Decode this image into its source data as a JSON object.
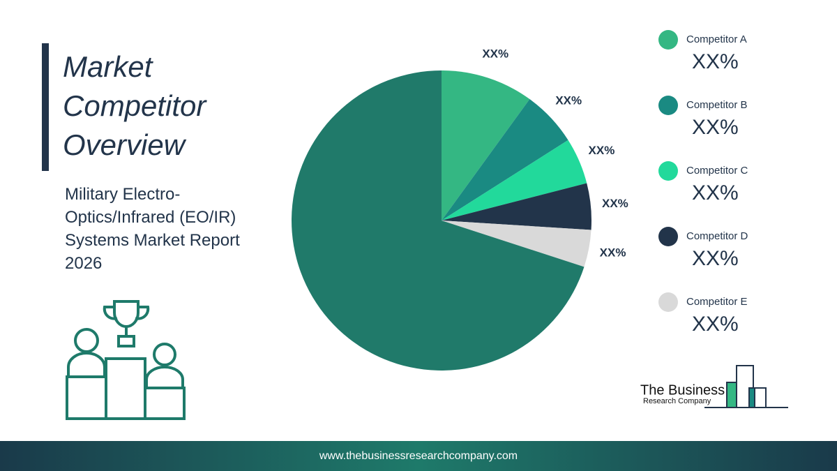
{
  "chart_data": {
    "type": "pie",
    "title": "Market Competitor Overview",
    "subtitle": "Military Electro-Optics/Infrared (EO/IR) Systems Market Report 2026",
    "categories": [
      "Competitor A",
      "Competitor B",
      "Competitor C",
      "Competitor D",
      "Competitor E",
      null
    ],
    "values": [
      10,
      6,
      5,
      5,
      4,
      70
    ],
    "value_labels": [
      "XX%",
      "XX%",
      "XX%",
      "XX%",
      "XX%",
      null
    ],
    "colors": [
      "#34b783",
      "#1a8a82",
      "#22d99b",
      "#22344a",
      "#d9d9d9",
      "#207a6a"
    ]
  },
  "logo": {
    "line1": "The Business",
    "line2": "Research Company"
  },
  "footer": {
    "url": "www.thebusinessresearchcompany.com"
  }
}
